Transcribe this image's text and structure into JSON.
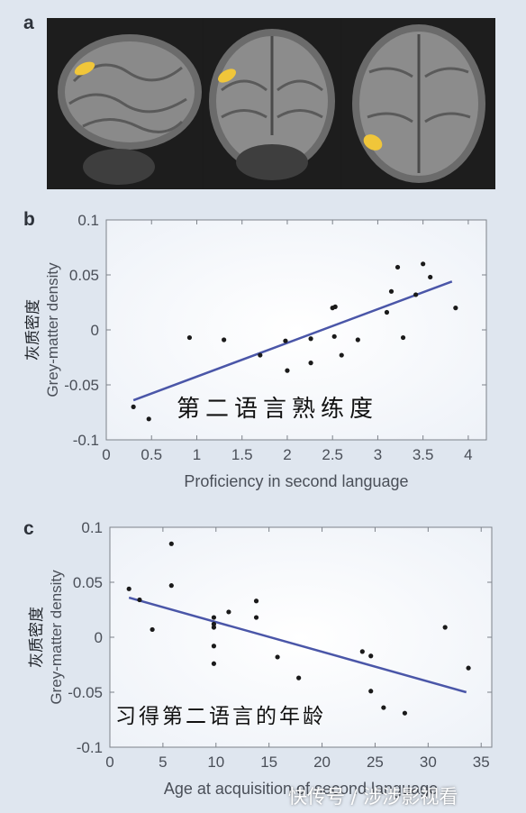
{
  "panels": {
    "a": "a",
    "b": "b",
    "c": "c"
  },
  "watermark": "快传号 / 涉涉影视看",
  "colors": {
    "line": "#4a56a8",
    "point": "#1a1a1a",
    "highlight": "#f0c63a",
    "panel_bg": "#ffffff"
  },
  "chart_data": [
    {
      "type": "scatter",
      "xlabel": "Proficiency in second language",
      "ylabel": "Grey-matter density",
      "ylabel_cn": "灰质密度",
      "annotation": "第二语言熟练度",
      "xlim": [
        0,
        4.2
      ],
      "ylim": [
        -0.1,
        0.1
      ],
      "xticks": [
        0,
        0.5,
        1,
        1.5,
        2,
        2.5,
        3,
        3.5,
        4
      ],
      "xtick_labels": [
        "0",
        "0.5",
        "1",
        "1.5",
        "2",
        "2.5",
        "3",
        "3.5",
        "4"
      ],
      "yticks": [
        0.1,
        0.05,
        0,
        -0.05,
        -0.1
      ],
      "ytick_labels": [
        "0.1",
        "0.05",
        "0",
        "-0.05",
        "-0.1"
      ],
      "points": [
        [
          0.3,
          -0.07
        ],
        [
          0.47,
          -0.081
        ],
        [
          0.92,
          -0.007
        ],
        [
          1.3,
          -0.009
        ],
        [
          1.7,
          -0.023
        ],
        [
          1.98,
          -0.01
        ],
        [
          2.0,
          -0.037
        ],
        [
          2.26,
          -0.008
        ],
        [
          2.26,
          -0.03
        ],
        [
          2.5,
          0.02
        ],
        [
          2.53,
          0.021
        ],
        [
          2.52,
          -0.006
        ],
        [
          2.6,
          -0.023
        ],
        [
          2.78,
          -0.009
        ],
        [
          3.1,
          0.016
        ],
        [
          3.15,
          0.035
        ],
        [
          3.22,
          0.057
        ],
        [
          3.28,
          -0.007
        ],
        [
          3.42,
          0.032
        ],
        [
          3.5,
          0.06
        ],
        [
          3.58,
          0.048
        ],
        [
          3.86,
          0.02
        ]
      ],
      "trend": [
        [
          0.3,
          -0.064
        ],
        [
          3.82,
          0.044
        ]
      ]
    },
    {
      "type": "scatter",
      "xlabel": "Age at acquisition of second language",
      "ylabel": "Grey-matter density",
      "ylabel_cn": "灰质密度",
      "annotation": "习得第二语言的年龄",
      "xlim": [
        0,
        36
      ],
      "ylim": [
        -0.1,
        0.1
      ],
      "xticks": [
        0,
        5,
        10,
        15,
        20,
        25,
        30,
        35
      ],
      "xtick_labels": [
        "0",
        "5",
        "10",
        "15",
        "20",
        "25",
        "30",
        "35"
      ],
      "yticks": [
        0.1,
        0.05,
        0,
        -0.05,
        -0.1
      ],
      "ytick_labels": [
        "0.1",
        "0.05",
        "0",
        "-0.05",
        "-0.1"
      ],
      "points": [
        [
          1.8,
          0.044
        ],
        [
          2.8,
          0.034
        ],
        [
          4.0,
          0.007
        ],
        [
          5.8,
          0.085
        ],
        [
          5.8,
          0.047
        ],
        [
          9.8,
          0.018
        ],
        [
          9.8,
          0.012
        ],
        [
          9.8,
          0.009
        ],
        [
          9.8,
          -0.008
        ],
        [
          9.8,
          -0.024
        ],
        [
          11.2,
          0.023
        ],
        [
          13.8,
          0.033
        ],
        [
          13.8,
          0.018
        ],
        [
          15.8,
          -0.018
        ],
        [
          17.8,
          -0.037
        ],
        [
          23.8,
          -0.013
        ],
        [
          24.6,
          -0.017
        ],
        [
          24.6,
          -0.049
        ],
        [
          25.8,
          -0.064
        ],
        [
          27.8,
          -0.069
        ],
        [
          31.6,
          0.009
        ],
        [
          33.8,
          -0.028
        ]
      ],
      "trend": [
        [
          1.8,
          0.036
        ],
        [
          33.6,
          -0.05
        ]
      ]
    }
  ]
}
